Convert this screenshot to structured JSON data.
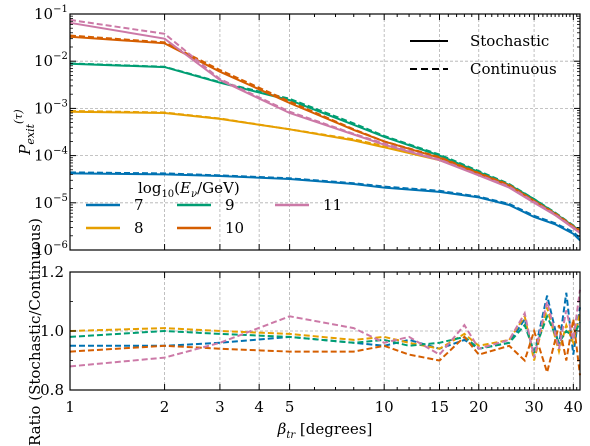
{
  "chart_data": [
    {
      "type": "line",
      "panel": "top",
      "ylabel": "P_exit^(τ)",
      "yscale": "log",
      "xscale": "log",
      "xlim": [
        1,
        42
      ],
      "ylim": [
        1e-06,
        0.1
      ],
      "grid": true,
      "ytick_labels": [
        "10^-6",
        "10^-5",
        "10^-4",
        "10^-3",
        "10^-2",
        "10^-1"
      ],
      "style_legend": {
        "placement": "top-right",
        "entries": [
          {
            "label": "Stochastic",
            "style": "solid"
          },
          {
            "label": "Continuous",
            "style": "dashed"
          }
        ]
      },
      "energy_legend": {
        "title": "log10(Eν/GeV)",
        "placement": "lower-left",
        "entries": [
          "7",
          "8",
          "9",
          "10",
          "11"
        ]
      },
      "series": [
        {
          "name": "7",
          "color": "#0072b2",
          "x": [
            1,
            2,
            3,
            5,
            8,
            10,
            15,
            20,
            25,
            30,
            35,
            40,
            42
          ],
          "stochastic": [
            4.2e-05,
            4e-05,
            3.7e-05,
            3.2e-05,
            2.5e-05,
            2.1e-05,
            1.7e-05,
            1.3e-05,
            9e-06,
            5e-06,
            3.5e-06,
            2.2e-06,
            1.6e-06
          ],
          "continuous": [
            4.4e-05,
            4.2e-05,
            3.8e-05,
            3.3e-05,
            2.6e-05,
            2.2e-05,
            1.8e-05,
            1.35e-05,
            9.5e-06,
            5.3e-06,
            3.7e-06,
            2.4e-06,
            1.8e-06
          ]
        },
        {
          "name": "8",
          "color": "#e69f00",
          "x": [
            1,
            2,
            3,
            5,
            8,
            10,
            15,
            20,
            25,
            30,
            35,
            40,
            42
          ],
          "stochastic": [
            0.00085,
            0.0008,
            0.0006,
            0.00036,
            0.00021,
            0.00015,
            8e-05,
            4e-05,
            2.2e-05,
            1.1e-05,
            5.5e-06,
            3e-06,
            2.4e-06
          ],
          "continuous": [
            0.00088,
            0.00082,
            0.00061,
            0.00036,
            0.00022,
            0.00016,
            8.3e-05,
            4.1e-05,
            2.3e-05,
            1.1e-05,
            5.7e-06,
            3.1e-06,
            2.5e-06
          ]
        },
        {
          "name": "9",
          "color": "#009e73",
          "x": [
            1,
            2,
            3,
            5,
            8,
            10,
            15,
            20,
            25,
            30,
            35,
            40,
            42
          ],
          "stochastic": [
            0.0088,
            0.0075,
            0.0035,
            0.0015,
            0.00045,
            0.00025,
            0.0001,
            4.5e-05,
            2.4e-05,
            1.2e-05,
            6e-06,
            3.2e-06,
            2.6e-06
          ],
          "continuous": [
            0.009,
            0.0076,
            0.0036,
            0.0016,
            0.00048,
            0.00026,
            0.000105,
            4.7e-05,
            2.5e-05,
            1.2e-05,
            6.2e-06,
            3.3e-06,
            2.7e-06
          ]
        },
        {
          "name": "10",
          "color": "#d55e00",
          "x": [
            1,
            2,
            3,
            5,
            8,
            10,
            15,
            20,
            25,
            30,
            35,
            40,
            42
          ],
          "stochastic": [
            0.033,
            0.024,
            0.006,
            0.0013,
            0.00035,
            0.0002,
            9e-05,
            4.2e-05,
            2.3e-05,
            1.1e-05,
            5.8e-06,
            3.1e-06,
            2.5e-06
          ],
          "continuous": [
            0.035,
            0.025,
            0.0065,
            0.0014,
            0.00036,
            0.0002,
            9.3e-05,
            4.3e-05,
            2.4e-05,
            1.1e-05,
            6e-06,
            3.2e-06,
            2.6e-06
          ]
        },
        {
          "name": "11",
          "color": "#cc79a7",
          "x": [
            1,
            2,
            3,
            5,
            8,
            10,
            15,
            20,
            25,
            30,
            35,
            40,
            42
          ],
          "stochastic": [
            0.065,
            0.03,
            0.004,
            0.0008,
            0.00028,
            0.00017,
            8e-05,
            3.8e-05,
            2.1e-05,
            1e-05,
            5.5e-06,
            2.9e-06,
            2.3e-06
          ],
          "continuous": [
            0.075,
            0.038,
            0.0042,
            0.00085,
            0.00029,
            0.00018,
            8.3e-05,
            3.9e-05,
            2.2e-05,
            1.05e-05,
            5.7e-06,
            3e-06,
            2.4e-06
          ]
        }
      ]
    },
    {
      "type": "line",
      "panel": "bottom",
      "ylabel": "Ratio (Stochastic/Continuous)",
      "xlabel": "β_tr [degrees]",
      "xscale": "log",
      "xlim": [
        1,
        42
      ],
      "ylim": [
        0.8,
        1.2
      ],
      "yticks": [
        "0.8",
        "1.0",
        "1.2"
      ],
      "xticks": [
        "1",
        "2",
        "3",
        "4",
        "5",
        "10",
        "15",
        "20",
        "30",
        "40"
      ],
      "grid": true,
      "series": [
        {
          "name": "7",
          "color": "#0072b2",
          "x": [
            1,
            2,
            3,
            5,
            8,
            10,
            12,
            15,
            18,
            20,
            25,
            28,
            30,
            33,
            36,
            38,
            40,
            42
          ],
          "values": [
            0.95,
            0.95,
            0.96,
            0.98,
            0.96,
            0.95,
            0.97,
            0.94,
            0.97,
            0.94,
            0.96,
            1.04,
            0.92,
            1.12,
            0.95,
            1.13,
            0.92,
            1.08
          ]
        },
        {
          "name": "8",
          "color": "#e69f00",
          "x": [
            1,
            2,
            3,
            5,
            8,
            10,
            12,
            15,
            18,
            20,
            25,
            28,
            30,
            33,
            36,
            38,
            40,
            42
          ],
          "values": [
            1.0,
            1.01,
            1.0,
            0.99,
            0.97,
            0.98,
            0.96,
            0.94,
            0.99,
            0.95,
            0.97,
            1.05,
            0.9,
            1.08,
            0.93,
            1.02,
            0.96,
            1.06
          ]
        },
        {
          "name": "9",
          "color": "#009e73",
          "x": [
            1,
            2,
            3,
            5,
            8,
            10,
            12,
            15,
            18,
            20,
            25,
            28,
            30,
            33,
            36,
            38,
            40,
            42
          ],
          "values": [
            0.98,
            1.0,
            0.99,
            0.98,
            0.96,
            0.97,
            0.95,
            0.96,
            0.98,
            0.94,
            0.96,
            1.02,
            0.93,
            1.05,
            0.96,
            1.0,
            0.98,
            1.03
          ]
        },
        {
          "name": "10",
          "color": "#d55e00",
          "x": [
            1,
            2,
            3,
            5,
            8,
            10,
            12,
            15,
            18,
            20,
            25,
            28,
            30,
            33,
            36,
            38,
            40,
            42
          ],
          "values": [
            0.93,
            0.95,
            0.94,
            0.93,
            0.93,
            0.95,
            0.92,
            0.9,
            0.98,
            0.92,
            0.95,
            0.9,
            1.0,
            0.86,
            1.02,
            0.9,
            1.04,
            0.85
          ]
        },
        {
          "name": "11",
          "color": "#cc79a7",
          "x": [
            1,
            2,
            3,
            5,
            8,
            10,
            12,
            15,
            18,
            20,
            25,
            28,
            30,
            33,
            36,
            38,
            40,
            42
          ],
          "values": [
            0.88,
            0.91,
            0.96,
            1.05,
            1.01,
            0.96,
            0.98,
            0.92,
            1.02,
            0.94,
            0.97,
            1.06,
            0.91,
            1.1,
            0.94,
            1.07,
            0.97,
            1.14
          ]
        }
      ]
    }
  ]
}
